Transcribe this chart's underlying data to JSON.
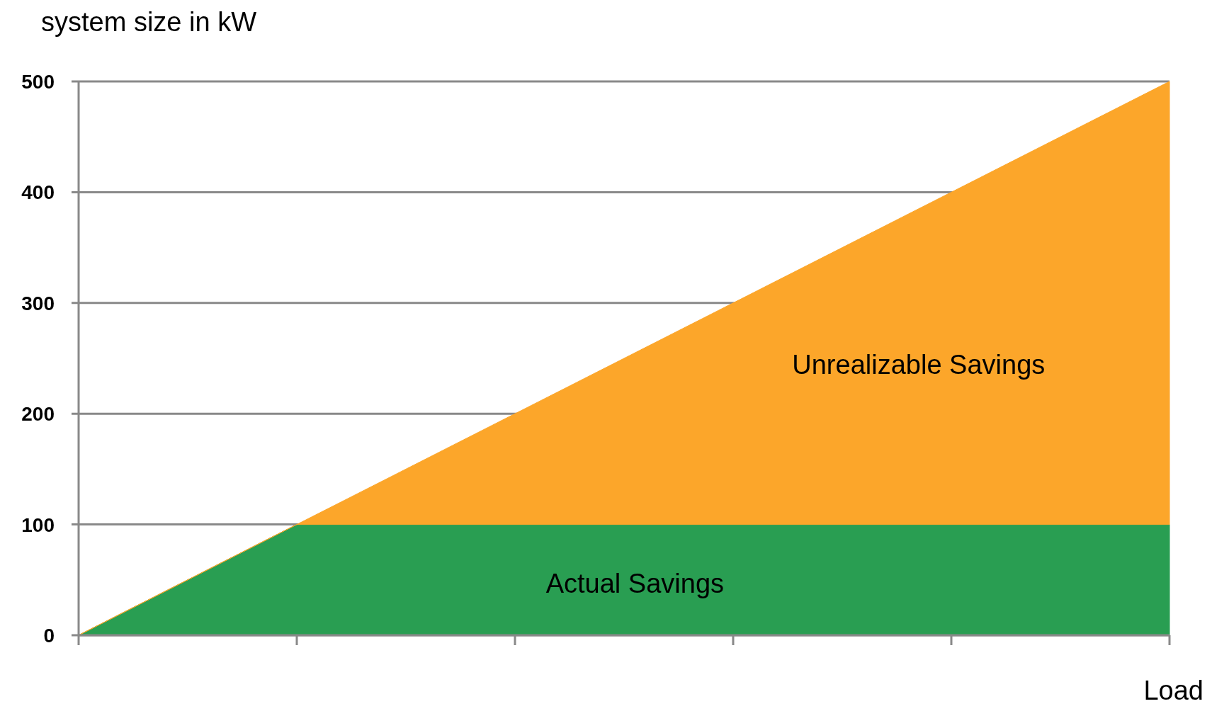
{
  "chart_data": {
    "type": "area",
    "stacked": true,
    "xlabel": "Load",
    "ylabel": "system size in kW",
    "categories": [
      null,
      null,
      null,
      null,
      null,
      null
    ],
    "series": [
      {
        "name": "Actual Savings",
        "color": "#299e52",
        "values": [
          0,
          100,
          100,
          100,
          100,
          100
        ]
      },
      {
        "name": "Unrealizable Savings",
        "color": "#fca62a",
        "values": [
          0,
          0,
          100,
          200,
          300,
          400
        ]
      }
    ],
    "ylim": [
      0,
      500
    ],
    "yticks": [
      0,
      100,
      200,
      300,
      400,
      500
    ],
    "grid": "y",
    "tick_labels": "y"
  }
}
